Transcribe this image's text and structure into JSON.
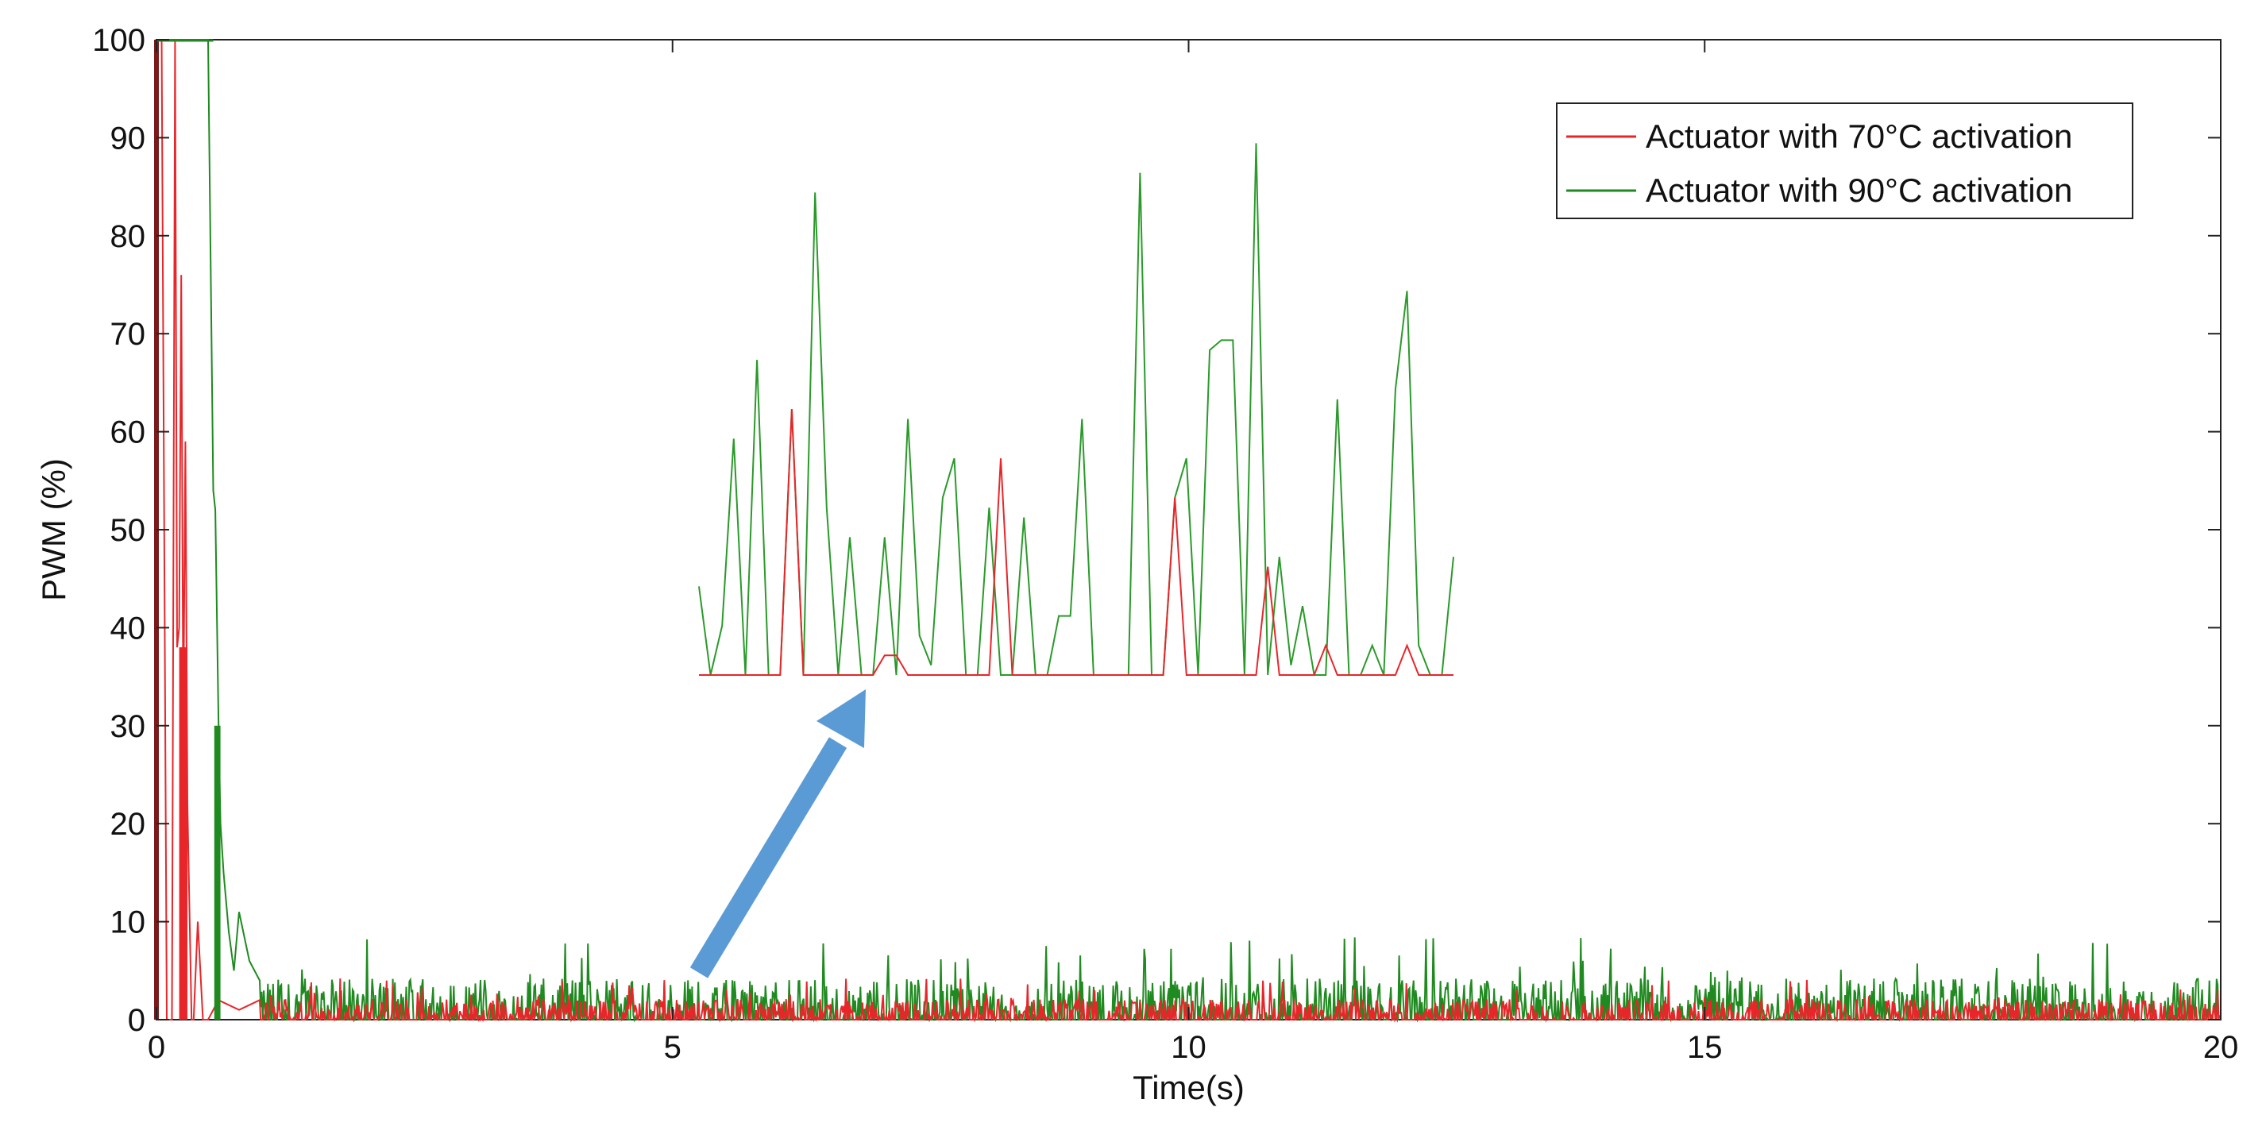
{
  "chart_data": {
    "type": "line",
    "title": "",
    "xlabel": "Time(s)",
    "ylabel": "PWM (%)",
    "xlim": [
      0,
      20
    ],
    "ylim": [
      0,
      100
    ],
    "xticks": [
      0,
      5,
      10,
      15,
      20
    ],
    "yticks": [
      0,
      10,
      20,
      30,
      40,
      50,
      60,
      70,
      80,
      90,
      100
    ],
    "grid": false,
    "legend_position": "top-right",
    "series": [
      {
        "name": "Actuator with 70°C activation",
        "color": "#e8262a",
        "x": [
          0,
          0.02,
          0.05,
          0.1,
          0.15,
          0.18,
          0.2,
          0.22,
          0.24,
          0.26,
          0.28,
          0.3,
          0.32,
          0.34,
          0.36,
          0.4,
          0.45,
          0.5,
          0.6,
          0.8,
          1,
          2,
          3,
          4,
          5,
          6,
          7,
          8,
          9,
          10,
          11,
          12,
          13,
          14,
          15,
          16,
          17,
          18,
          19,
          20
        ],
        "y": [
          100,
          100,
          100,
          0,
          0,
          100,
          38,
          40,
          76,
          30,
          59,
          22,
          11,
          0,
          0,
          10,
          0,
          0,
          2,
          1,
          2,
          1,
          2,
          1,
          1,
          2,
          1,
          2,
          1,
          2,
          1,
          1,
          2,
          1,
          2,
          1,
          2,
          1,
          1,
          2
        ],
        "noise_amplitude": 3
      },
      {
        "name": "Actuator with 90°C activation",
        "color": "#1f8a1f",
        "x": [
          0,
          0.1,
          0.2,
          0.3,
          0.45,
          0.5,
          0.55,
          0.57,
          0.6,
          0.62,
          0.65,
          0.7,
          0.75,
          0.8,
          0.9,
          1,
          2,
          3,
          4,
          5,
          6,
          7,
          8,
          9,
          10,
          11,
          12,
          13,
          14,
          15,
          16,
          17,
          18,
          19,
          20
        ],
        "y": [
          100,
          100,
          100,
          100,
          100,
          100,
          54,
          52,
          31,
          20,
          15,
          9,
          5,
          11,
          6,
          4,
          3,
          4,
          3,
          3,
          3,
          3,
          3,
          3,
          3,
          3,
          3,
          3,
          3,
          3,
          3,
          3,
          3,
          3,
          3
        ],
        "noise_amplitude": 6
      }
    ],
    "inset": {
      "description_arrow_target_x": 7.0,
      "series_green": [
        44,
        35,
        40,
        59,
        35,
        67,
        35,
        35,
        62,
        35,
        84,
        52,
        35,
        49,
        35,
        35,
        49,
        35,
        61,
        39,
        36,
        53,
        57,
        35,
        35,
        52,
        35,
        35,
        51,
        35,
        35,
        41,
        41,
        61,
        35,
        35,
        35,
        35,
        86,
        35,
        35,
        53,
        57,
        35,
        68,
        69,
        69,
        35,
        89,
        35,
        47,
        36,
        42,
        35,
        35,
        63,
        35,
        35,
        38,
        35,
        64,
        74,
        38,
        35,
        35,
        47
      ],
      "series_red": [
        35,
        35,
        35,
        35,
        35,
        35,
        35,
        35,
        62,
        35,
        35,
        35,
        35,
        35,
        35,
        35,
        37,
        37,
        35,
        35,
        35,
        35,
        35,
        35,
        35,
        35,
        57,
        35,
        35,
        35,
        35,
        35,
        35,
        35,
        35,
        35,
        35,
        35,
        35,
        35,
        35,
        53,
        35,
        35,
        35,
        35,
        35,
        35,
        35,
        46,
        35,
        35,
        35,
        35,
        38,
        35,
        35,
        35,
        35,
        35,
        35,
        38,
        35,
        35,
        35,
        35
      ]
    }
  }
}
